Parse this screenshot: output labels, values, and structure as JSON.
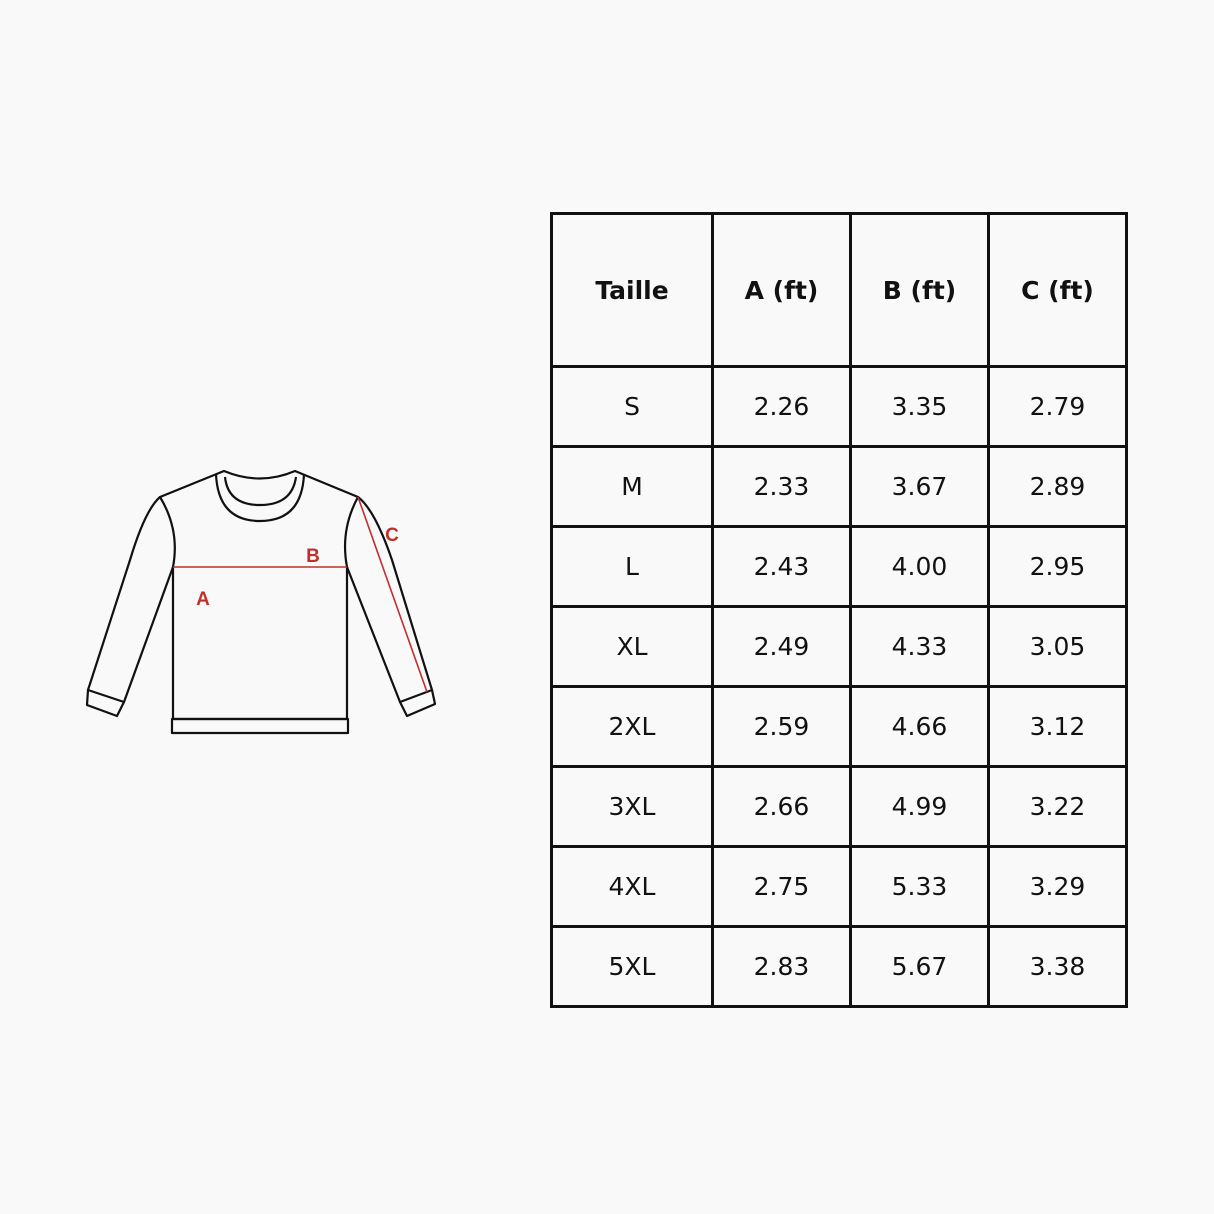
{
  "diagram": {
    "labels": {
      "a": "A",
      "b": "B",
      "c": "C"
    },
    "line_color": "#111111",
    "measure_color": "#c0302a"
  },
  "table": {
    "headers": [
      "Taille",
      "A (ft)",
      "B (ft)",
      "C (ft)"
    ],
    "rows": [
      [
        "S",
        "2.26",
        "3.35",
        "2.79"
      ],
      [
        "M",
        "2.33",
        "3.67",
        "2.89"
      ],
      [
        "L",
        "2.43",
        "4.00",
        "2.95"
      ],
      [
        "XL",
        "2.49",
        "4.33",
        "3.05"
      ],
      [
        "2XL",
        "2.59",
        "4.66",
        "3.12"
      ],
      [
        "3XL",
        "2.66",
        "4.99",
        "3.22"
      ],
      [
        "4XL",
        "2.75",
        "5.33",
        "3.29"
      ],
      [
        "5XL",
        "2.83",
        "5.67",
        "3.38"
      ]
    ]
  }
}
